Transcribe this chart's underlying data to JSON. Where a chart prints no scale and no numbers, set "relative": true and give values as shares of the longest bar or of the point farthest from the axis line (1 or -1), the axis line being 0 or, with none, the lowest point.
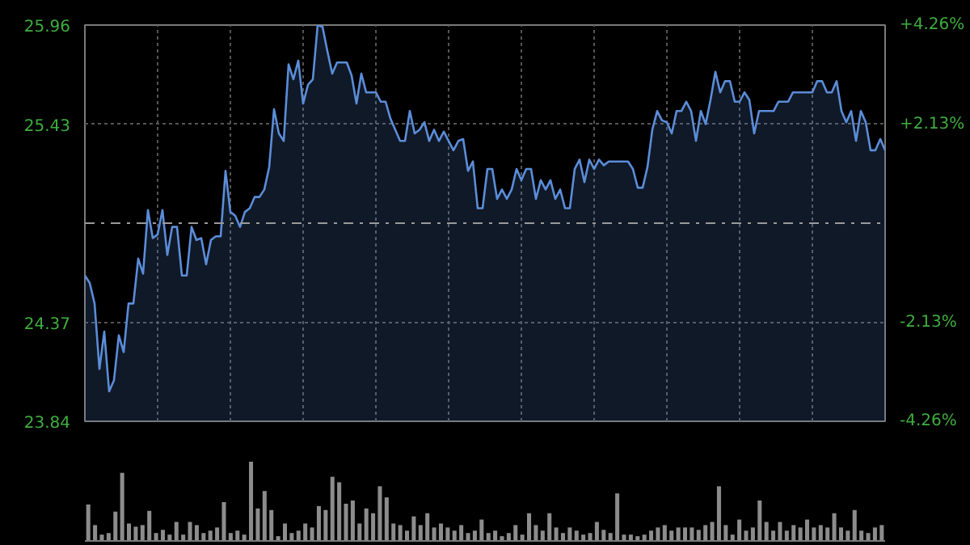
{
  "chart_data": [
    {
      "type": "area",
      "categories": [
        null,
        null,
        null,
        null,
        null,
        null,
        null,
        null,
        null,
        null,
        null,
        null,
        null,
        null,
        null,
        null,
        null,
        null,
        null,
        null,
        null,
        null,
        null,
        null,
        null,
        null,
        null,
        null,
        null,
        null,
        null,
        null,
        null,
        null,
        null,
        null,
        null,
        null,
        null,
        null,
        null,
        null,
        null,
        null,
        null,
        null,
        null,
        null,
        null,
        null,
        null,
        null,
        null,
        null,
        null,
        null,
        null,
        null,
        null,
        null,
        null,
        null,
        null,
        null,
        null,
        null,
        null,
        null,
        null,
        null,
        null,
        null,
        null,
        null,
        null,
        null,
        null,
        null,
        null,
        null,
        null,
        null,
        null,
        null,
        null,
        null,
        null,
        null,
        null,
        null,
        null,
        null,
        null,
        null,
        null,
        null,
        null,
        null,
        null,
        null,
        null,
        null,
        null,
        null,
        null,
        null,
        null,
        null,
        null,
        null,
        null,
        null,
        null,
        null,
        null,
        null,
        null,
        null,
        null,
        null,
        null,
        null,
        null,
        null,
        null,
        null,
        null,
        null,
        null,
        null,
        null,
        null,
        null,
        null,
        null,
        null,
        null,
        null,
        null,
        null,
        null,
        null,
        null,
        null,
        null,
        null,
        null,
        null,
        null,
        null,
        null,
        null,
        null,
        null,
        null,
        null,
        null,
        null,
        null,
        null,
        null,
        null,
        null,
        null,
        null,
        null
      ],
      "ylim": [
        23.84,
        25.96
      ],
      "yticks": [
        25.96,
        25.43,
        24.37,
        23.84
      ],
      "y2lim": [
        -4.26,
        4.26
      ],
      "y2ticks": [
        {
          "value": 4.26,
          "label": "+4.26%"
        },
        {
          "value": 2.13,
          "label": "+2.13%"
        },
        {
          "value": -2.13,
          "label": "-2.13%"
        },
        {
          "value": -4.26,
          "label": "-4.26%"
        }
      ],
      "tick_labels": "y",
      "grid": true,
      "ref_lines": [
        {
          "axis": "y",
          "value": 24.9,
          "line_style": "dashdot"
        }
      ],
      "series": [
        {
          "color": "#5b8dd9",
          "values": [
            24.62,
            24.58,
            24.47,
            24.12,
            24.32,
            24.0,
            24.06,
            24.3,
            24.21,
            24.47,
            24.47,
            24.71,
            24.63,
            24.97,
            24.82,
            24.84,
            24.97,
            24.73,
            24.88,
            24.88,
            24.62,
            24.62,
            24.88,
            24.81,
            24.82,
            24.68,
            24.81,
            24.83,
            24.83,
            25.18,
            24.96,
            24.94,
            24.88,
            24.96,
            24.98,
            25.04,
            25.04,
            25.08,
            25.2,
            25.51,
            25.38,
            25.34,
            25.75,
            25.67,
            25.77,
            25.54,
            25.64,
            25.67,
            25.96,
            25.95,
            25.82,
            25.7,
            25.76,
            25.76,
            25.76,
            25.69,
            25.54,
            25.7,
            25.6,
            25.6,
            25.6,
            25.55,
            25.55,
            25.46,
            25.4,
            25.34,
            25.34,
            25.5,
            25.38,
            25.4,
            25.44,
            25.34,
            25.4,
            25.34,
            25.39,
            25.34,
            25.29,
            25.34,
            25.35,
            25.18,
            25.23,
            24.98,
            24.98,
            25.19,
            25.19,
            25.03,
            25.08,
            25.03,
            25.08,
            25.19,
            25.13,
            25.19,
            25.19,
            25.03,
            25.13,
            25.08,
            25.13,
            25.03,
            25.08,
            24.98,
            24.98,
            25.19,
            25.24,
            25.12,
            25.24,
            25.19,
            25.24,
            25.21,
            25.23,
            25.23,
            25.23,
            25.23,
            25.23,
            25.19,
            25.09,
            25.09,
            25.2,
            25.4,
            25.5,
            25.45,
            25.44,
            25.38,
            25.5,
            25.5,
            25.55,
            25.5,
            25.34,
            25.5,
            25.43,
            25.56,
            25.71,
            25.6,
            25.66,
            25.66,
            25.55,
            25.55,
            25.6,
            25.56,
            25.38,
            25.5,
            25.5,
            25.5,
            25.5,
            25.55,
            25.55,
            25.55,
            25.6,
            25.6,
            25.6,
            25.6,
            25.6,
            25.66,
            25.66,
            25.6,
            25.6,
            25.66,
            25.5,
            25.44,
            25.5,
            25.34,
            25.5,
            25.44,
            25.29,
            25.29,
            25.35,
            25.29
          ]
        }
      ]
    },
    {
      "type": "bar",
      "relative": true,
      "color": "#8c8c8c",
      "categories": [
        null,
        null,
        null,
        null,
        null,
        null,
        null,
        null,
        null,
        null,
        null,
        null,
        null,
        null,
        null,
        null,
        null,
        null,
        null,
        null,
        null,
        null,
        null,
        null,
        null,
        null,
        null,
        null,
        null,
        null,
        null,
        null,
        null,
        null,
        null,
        null,
        null,
        null,
        null,
        null,
        null,
        null,
        null,
        null,
        null,
        null,
        null,
        null,
        null,
        null,
        null,
        null,
        null,
        null,
        null,
        null,
        null,
        null,
        null,
        null,
        null,
        null,
        null,
        null,
        null,
        null,
        null,
        null,
        null,
        null,
        null,
        null,
        null,
        null,
        null,
        null,
        null,
        null,
        null,
        null,
        null,
        null,
        null,
        null,
        null,
        null,
        null,
        null,
        null,
        null,
        null,
        null,
        null,
        null,
        null,
        null,
        null,
        null,
        null,
        null,
        null,
        null,
        null,
        null,
        null,
        null,
        null,
        null,
        null,
        null,
        null,
        null,
        null,
        null,
        null,
        null,
        null,
        null
      ],
      "values": [
        0.46,
        0.2,
        0.08,
        0.1,
        0.37,
        0.86,
        0.22,
        0.18,
        0.2,
        0.38,
        0.1,
        0.14,
        0.08,
        0.24,
        0.08,
        0.24,
        0.2,
        0.1,
        0.13,
        0.17,
        0.49,
        0.1,
        0.13,
        0.08,
        1,
        0.41,
        0.63,
        0.39,
        0.06,
        0.22,
        0.1,
        0.13,
        0.22,
        0.17,
        0.44,
        0.39,
        0.81,
        0.74,
        0.47,
        0.51,
        0.22,
        0.41,
        0.35,
        0.69,
        0.55,
        0.22,
        0.2,
        0.13,
        0.31,
        0.2,
        0.35,
        0.17,
        0.22,
        0.17,
        0.13,
        0.2,
        0.1,
        0.13,
        0.27,
        0.1,
        0.13,
        0.06,
        0.1,
        0.2,
        0.08,
        0.35,
        0.2,
        0.13,
        0.35,
        0.17,
        0.1,
        0.17,
        0.13,
        0.08,
        0.1,
        0.24,
        0.14,
        0.1,
        0.6,
        0.08,
        0.08,
        0.06,
        0.08,
        0.13,
        0.17,
        0.2,
        0.13,
        0.17,
        0.17,
        0.17,
        0.14,
        0.2,
        0.24,
        0.69,
        0.2,
        0.08,
        0.27,
        0.13,
        0.17,
        0.51,
        0.24,
        0.13,
        0.24,
        0.13,
        0.2,
        0.17,
        0.27,
        0.17,
        0.2,
        0.17,
        0.35,
        0.17,
        0.13,
        0.39,
        0.13,
        0.1,
        0.17,
        0.2
      ]
    }
  ]
}
